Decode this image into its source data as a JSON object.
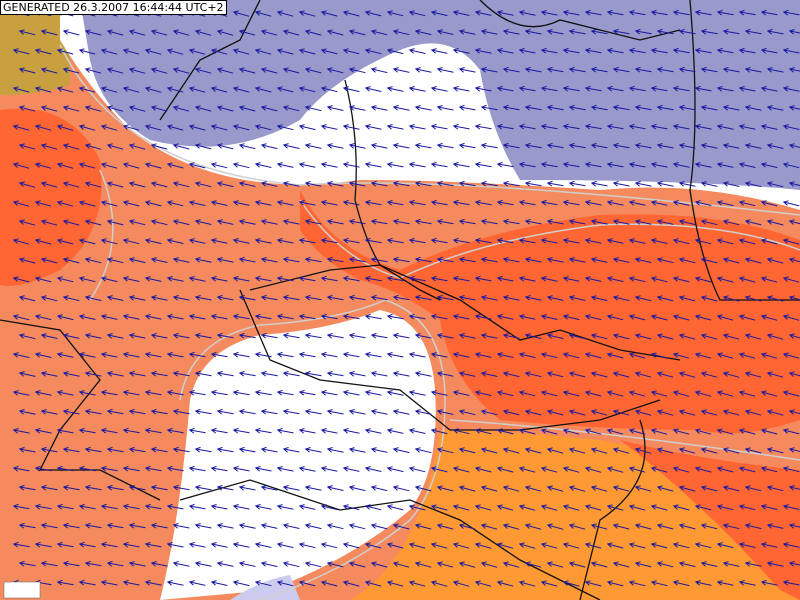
{
  "header": {
    "generated": "GENERATED 26.3.2007 16:44:44 UTC+2"
  }
}
